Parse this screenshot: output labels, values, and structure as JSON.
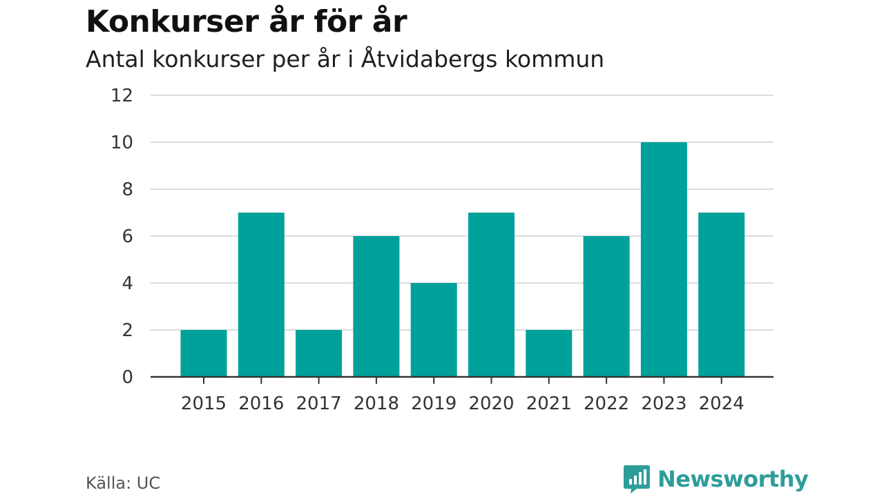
{
  "header": {
    "title": "Konkurser år för år",
    "subtitle": "Antal konkurser per år i Åtvidabergs kommun"
  },
  "footer": {
    "source": "Källa: UC",
    "brand": "Newsworthy"
  },
  "colors": {
    "bar": "#00a19a",
    "grid": "#dcdcdc",
    "axis": "#333333",
    "brand": "#2e9d9a"
  },
  "chart_data": {
    "type": "bar",
    "title": "Konkurser år för år",
    "subtitle": "Antal konkurser per år i Åtvidabergs kommun",
    "xlabel": "",
    "ylabel": "",
    "categories": [
      "2015",
      "2016",
      "2017",
      "2018",
      "2019",
      "2020",
      "2021",
      "2022",
      "2023",
      "2024"
    ],
    "values": [
      2,
      7,
      2,
      6,
      4,
      7,
      2,
      6,
      10,
      7
    ],
    "ylim": [
      0,
      12
    ],
    "yticks": [
      0,
      2,
      4,
      6,
      8,
      10,
      12
    ],
    "grid": true,
    "legend": "none"
  }
}
